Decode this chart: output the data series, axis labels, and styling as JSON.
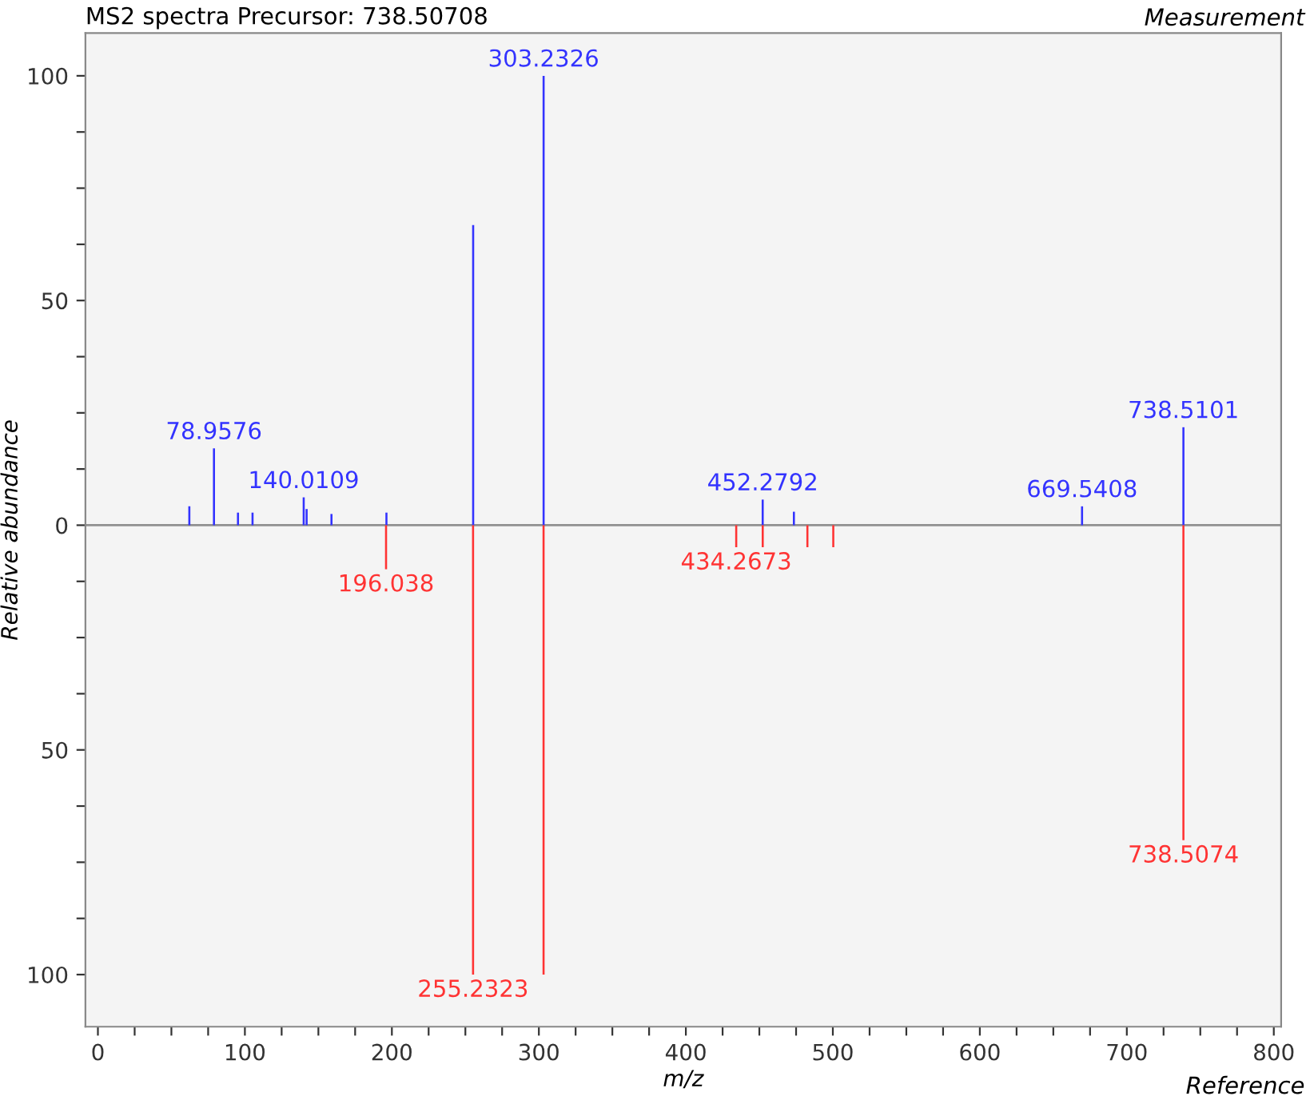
{
  "chart_data": {
    "type": "bar",
    "title": "MS2 spectra Precursor: 738.50708",
    "xlabel": "m/z",
    "ylabel": "Relative abundance",
    "annotations": [
      "Measurement",
      "Reference",
      {
        "text": "78.9576",
        "x": 78.9576,
        "y": 17.1
      },
      {
        "text": "140.0109",
        "x": 140.0109,
        "y": 6.2
      },
      {
        "text": "303.2326",
        "x": 303.2326,
        "y": 100
      },
      {
        "text": "452.2792",
        "x": 452.2792,
        "y": 5.7
      },
      {
        "text": "669.5408",
        "x": 669.5408,
        "y": 4.2
      },
      {
        "text": "738.5101",
        "x": 738.5101,
        "y": 21.8
      },
      {
        "text": "196.038",
        "x": 196.038,
        "y": -9.8
      },
      {
        "text": "255.2323",
        "x": 255.2323,
        "y": -100
      },
      {
        "text": "434.2673",
        "x": 434.2673,
        "y": -4.9
      },
      {
        "text": "738.5074",
        "x": 738.5074,
        "y": -70.1
      }
    ],
    "series": [
      {
        "color": "#3333ff",
        "x": [
          62.2,
          78.9576,
          95.3,
          105.2,
          140.0109,
          142.0,
          158.9,
          196.3,
          255.3,
          303.2326,
          452.2792,
          473.5,
          669.5408,
          738.5101
        ],
        "values": [
          4.2,
          17.1,
          2.8,
          2.8,
          6.2,
          3.6,
          2.5,
          2.8,
          66.8,
          100,
          5.7,
          3.0,
          4.2,
          21.8
        ]
      },
      {
        "color": "#ff3333",
        "x": [
          196.038,
          255.2323,
          303.2,
          434.2673,
          452.3,
          482.7,
          500.3,
          738.5074
        ],
        "values": [
          -9.8,
          -100,
          -100,
          -4.9,
          -4.9,
          -4.9,
          -4.9,
          -70.1
        ]
      }
    ],
    "ref_lines": [
      {
        "axis": "y",
        "value": 0,
        "color": "#909090"
      }
    ],
    "xlim": [
      -8.5,
      805
    ],
    "ylim": [
      -111.6,
      109.5
    ],
    "xticks": [
      0,
      {
        "value": 25,
        "label": null
      },
      {
        "value": 50,
        "label": null
      },
      {
        "value": 75,
        "label": null
      },
      100,
      {
        "value": 125,
        "label": null
      },
      {
        "value": 150,
        "label": null
      },
      {
        "value": 175,
        "label": null
      },
      200,
      {
        "value": 225,
        "label": null
      },
      {
        "value": 250,
        "label": null
      },
      {
        "value": 275,
        "label": null
      },
      300,
      {
        "value": 325,
        "label": null
      },
      {
        "value": 350,
        "label": null
      },
      {
        "value": 375,
        "label": null
      },
      400,
      {
        "value": 425,
        "label": null
      },
      {
        "value": 450,
        "label": null
      },
      {
        "value": 475,
        "label": null
      },
      500,
      {
        "value": 525,
        "label": null
      },
      {
        "value": 550,
        "label": null
      },
      {
        "value": 575,
        "label": null
      },
      600,
      {
        "value": 625,
        "label": null
      },
      {
        "value": 650,
        "label": null
      },
      {
        "value": 675,
        "label": null
      },
      700,
      {
        "value": 725,
        "label": null
      },
      {
        "value": 750,
        "label": null
      },
      {
        "value": 775,
        "label": null
      },
      800
    ],
    "yticks": [
      {
        "value": -100,
        "label": "100"
      },
      {
        "value": -87.5,
        "label": null
      },
      {
        "value": -75,
        "label": null
      },
      {
        "value": -62.5,
        "label": null
      },
      {
        "value": -50,
        "label": "50"
      },
      {
        "value": -37.5,
        "label": null
      },
      {
        "value": -25,
        "label": null
      },
      {
        "value": -12.5,
        "label": null
      },
      0,
      {
        "value": 12.5,
        "label": null
      },
      {
        "value": 25,
        "label": null
      },
      {
        "value": 37.5,
        "label": null
      },
      50,
      {
        "value": 62.5,
        "label": null
      },
      {
        "value": 75,
        "label": null
      },
      {
        "value": 87.5,
        "label": null
      },
      100
    ],
    "grid": false
  }
}
